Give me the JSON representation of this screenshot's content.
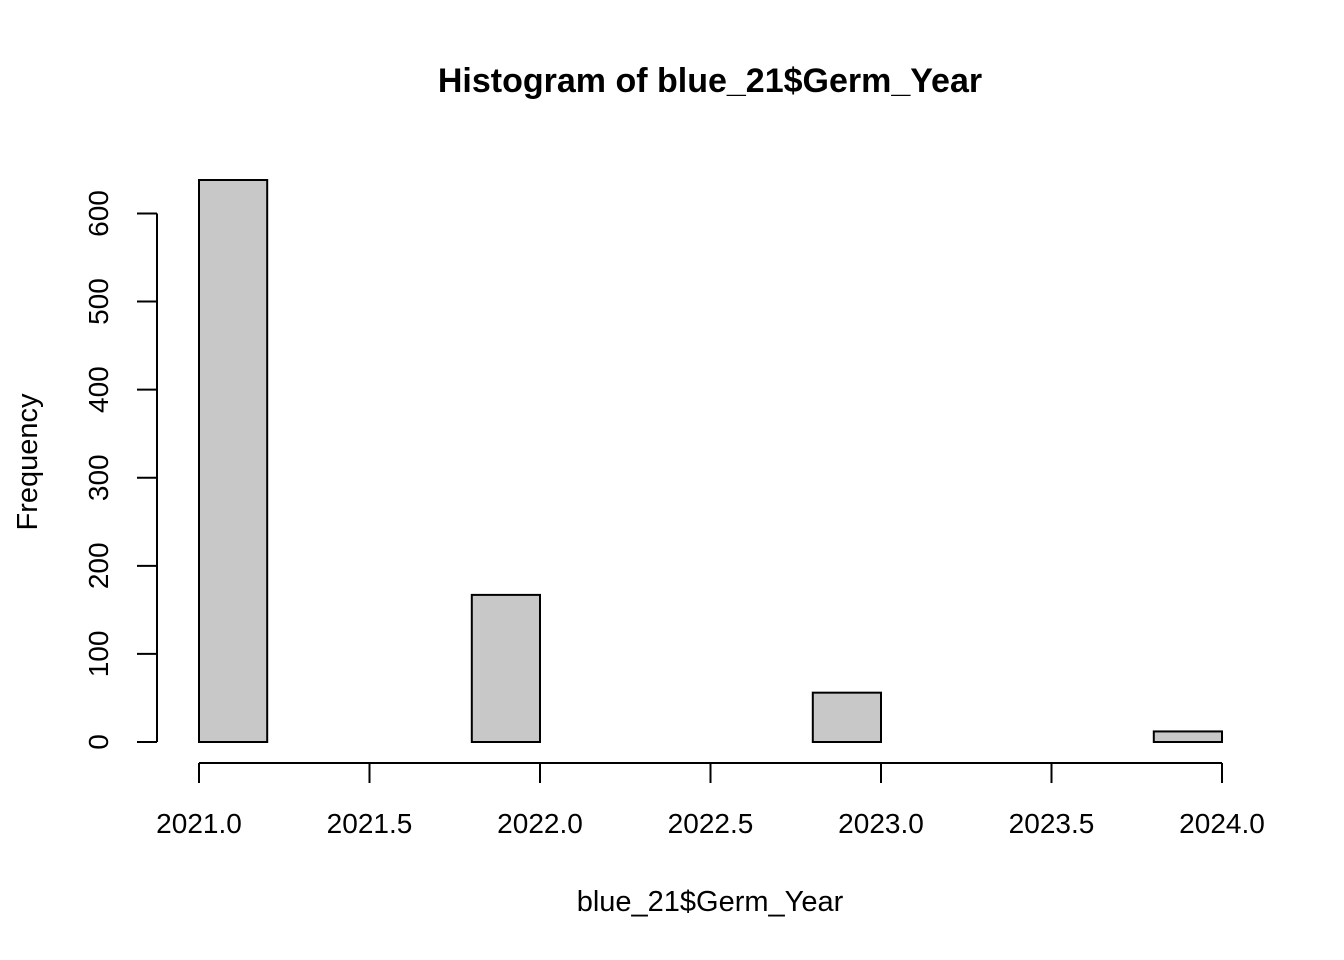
{
  "chart_data": {
    "type": "bar",
    "title": "Histogram of blue_21$Germ_Year",
    "xlabel": "blue_21$Germ_Year",
    "ylabel": "Frequency",
    "bin_edges": [
      2021.0,
      2021.2,
      2021.4,
      2021.6,
      2021.8,
      2022.0,
      2022.2,
      2022.4,
      2022.6,
      2022.8,
      2023.0,
      2023.2,
      2023.4,
      2023.6,
      2023.8,
      2024.0
    ],
    "values": [
      638,
      0,
      0,
      0,
      167,
      0,
      0,
      0,
      0,
      56,
      0,
      0,
      0,
      0,
      12
    ],
    "xlim": [
      2021.0,
      2024.0
    ],
    "ylim": [
      0,
      638
    ],
    "x_ticks": [
      2021.0,
      2021.5,
      2022.0,
      2022.5,
      2023.0,
      2023.5,
      2024.0
    ],
    "x_tick_labels": [
      "2021.0",
      "2021.5",
      "2022.0",
      "2022.5",
      "2023.0",
      "2023.5",
      "2024.0"
    ],
    "y_ticks": [
      0,
      100,
      200,
      300,
      400,
      500,
      600
    ],
    "y_tick_labels": [
      "0",
      "100",
      "200",
      "300",
      "400",
      "500",
      "600"
    ],
    "grid": false,
    "bar_color": "#c8c8c8",
    "bar_edge_color": "#000000"
  }
}
